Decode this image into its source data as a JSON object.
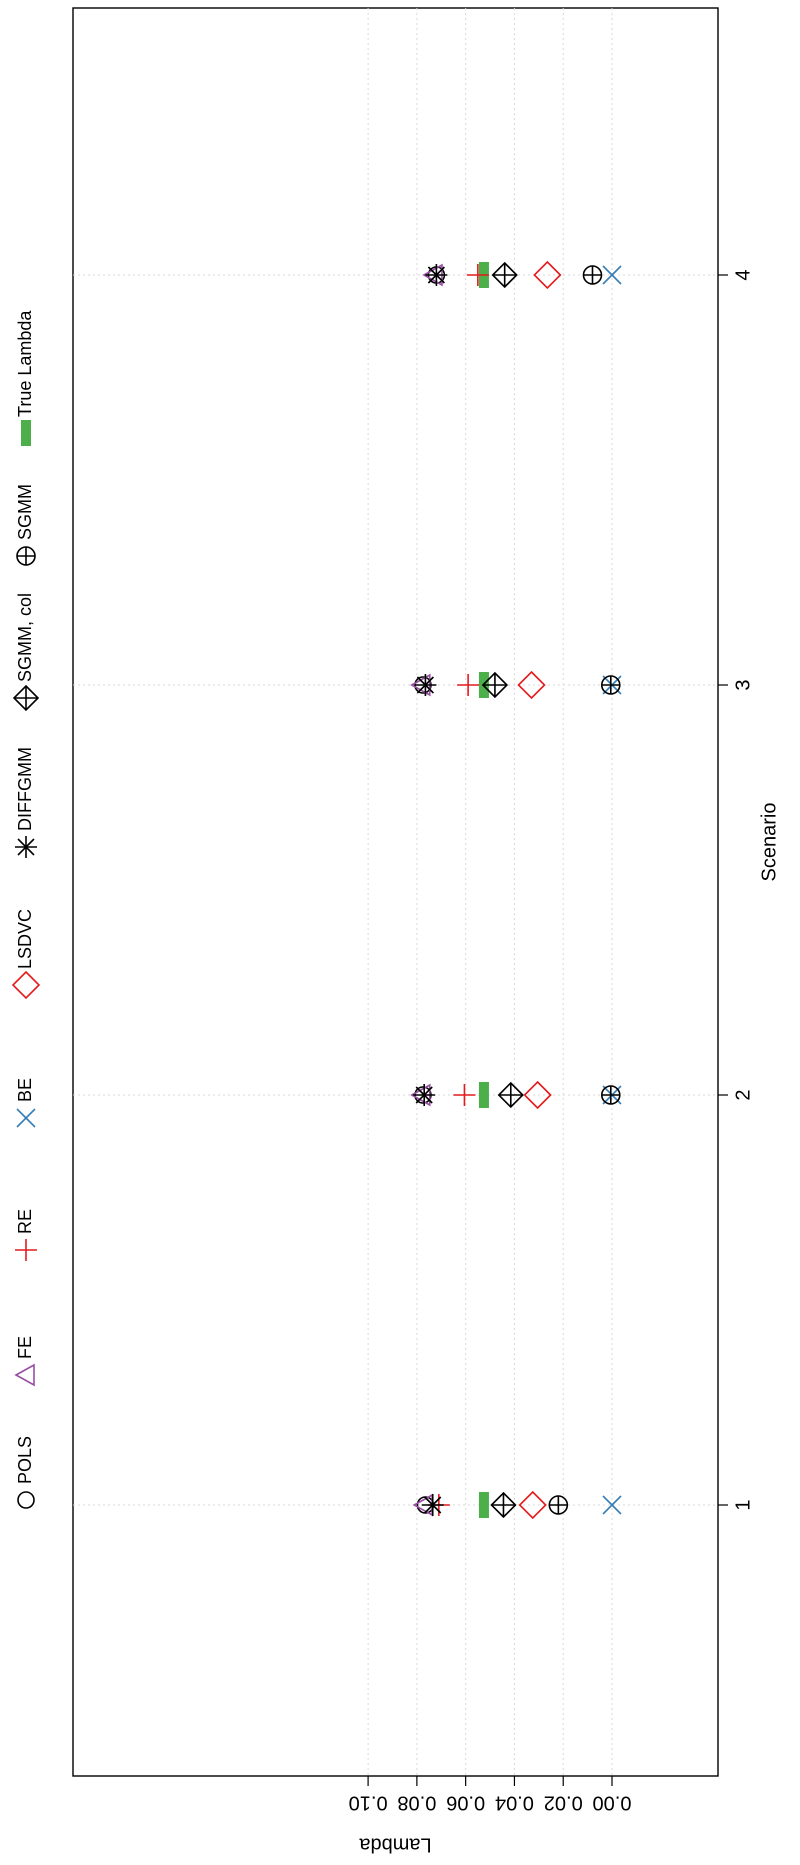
{
  "chart_data": {
    "type": "scatter",
    "orientation": "rotated 90 degrees clockwise",
    "title": "",
    "xlabel": "Scenario",
    "ylabel": "Lambda",
    "x": [
      1,
      2,
      3,
      4
    ],
    "x_tick_labels": [
      "1",
      "2",
      "3",
      "4"
    ],
    "ylim": [
      -0.01,
      0.105
    ],
    "y_ticks": [
      0.0,
      0.02,
      0.04,
      0.06,
      0.08,
      0.1
    ],
    "y_tick_labels": [
      "0.00",
      "0.02",
      "0.04",
      "0.06",
      "0.08",
      "0.10"
    ],
    "grid": true,
    "legend_placement": "top",
    "series": [
      {
        "name": "POLS",
        "marker": "circle",
        "color": "#000000",
        "values": [
          0.0765,
          0.0775,
          0.0775,
          0.072
        ]
      },
      {
        "name": "FE",
        "marker": "triangle",
        "color": "#984ea3",
        "values": [
          0.077,
          0.078,
          0.078,
          0.073
        ]
      },
      {
        "name": "RE",
        "marker": "plus",
        "color": "#e41a1c",
        "values": [
          0.071,
          0.0605,
          0.059,
          0.055
        ]
      },
      {
        "name": "BE",
        "marker": "x",
        "color": "#377eb8",
        "values": [
          0.0,
          0.0,
          0.0,
          0.0
        ]
      },
      {
        "name": "LSDVC",
        "marker": "diamond",
        "color": "#e41a1c",
        "values": [
          0.0325,
          0.0305,
          0.033,
          0.0265
        ]
      },
      {
        "name": "DIFFGMM",
        "marker": "asterisk",
        "color": "#000000",
        "values": [
          0.0735,
          0.077,
          0.0765,
          0.072
        ]
      },
      {
        "name": "SGMM, col",
        "marker": "diamond-plus",
        "color": "#000000",
        "values": [
          0.0445,
          0.0415,
          0.048,
          0.044
        ]
      },
      {
        "name": "SGMM",
        "marker": "circle-plus",
        "color": "#000000",
        "values": [
          0.022,
          0.0005,
          0.0005,
          0.008
        ]
      },
      {
        "name": "True Lambda",
        "marker": "bar",
        "color": "#4daf4a",
        "values": [
          0.0525,
          0.0525,
          0.0525,
          0.0525
        ]
      }
    ]
  }
}
